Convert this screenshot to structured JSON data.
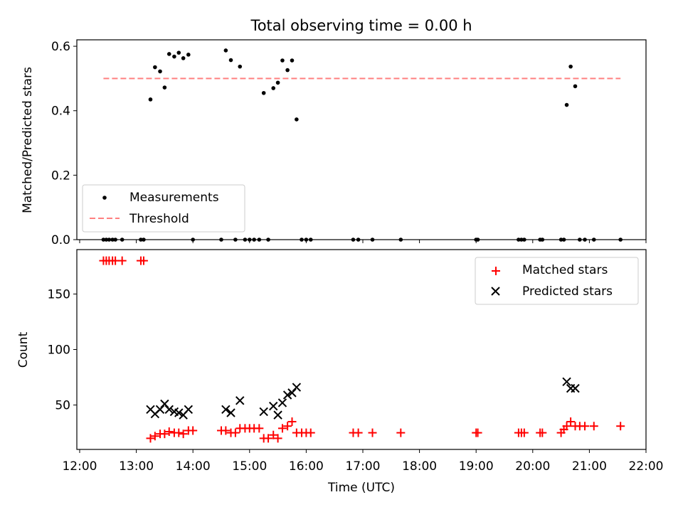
{
  "chart_data": [
    {
      "type": "scatter",
      "title": "Total observing time = 0.00 h",
      "ylabel": "Matched/Predicted stars",
      "xlim": [
        11.95,
        22.0
      ],
      "ylim": [
        0.0,
        0.62
      ],
      "y_ticks": [
        0.0,
        0.2,
        0.4,
        0.6
      ],
      "y_tick_labels": [
        "0.0",
        "0.2",
        "0.4",
        "0.6"
      ],
      "legend_position": "lower-left",
      "series": [
        {
          "name": "Measurements",
          "marker": "dot",
          "color": "#000000",
          "x": [
            12.42,
            12.47,
            12.52,
            12.58,
            12.63,
            12.75,
            13.08,
            13.13,
            13.25,
            13.33,
            13.42,
            13.5,
            13.58,
            13.67,
            13.75,
            13.83,
            13.92,
            14.0,
            14.5,
            14.58,
            14.67,
            14.75,
            14.83,
            14.92,
            15.0,
            15.08,
            15.17,
            15.25,
            15.33,
            15.42,
            15.5,
            15.58,
            15.67,
            15.75,
            15.83,
            15.92,
            16.0,
            16.08,
            16.83,
            16.92,
            17.17,
            17.67,
            19.0,
            19.03,
            19.75,
            19.8,
            19.85,
            20.13,
            20.17,
            20.5,
            20.55,
            20.6,
            20.67,
            20.75,
            20.83,
            20.92,
            21.08,
            21.55
          ],
          "y": [
            0.0,
            0.0,
            0.0,
            0.0,
            0.0,
            0.0,
            0.0,
            0.0,
            0.435,
            0.535,
            0.522,
            0.472,
            0.576,
            0.568,
            0.58,
            0.563,
            0.574,
            0.0,
            0.0,
            0.587,
            0.557,
            0.0,
            0.537,
            0.0,
            0.0,
            0.0,
            0.0,
            0.455,
            0.0,
            0.47,
            0.487,
            0.556,
            0.526,
            0.556,
            0.373,
            0.0,
            0.0,
            0.0,
            0.0,
            0.0,
            0.0,
            0.0,
            0.0,
            0.0,
            0.0,
            0.0,
            0.0,
            0.0,
            0.0,
            0.0,
            0.0,
            0.418,
            0.537,
            0.476,
            0.0,
            0.0,
            0.0,
            0.0
          ]
        },
        {
          "name": "Threshold",
          "type": "line",
          "style": "dashed",
          "color": "#ff8080",
          "x": [
            12.42,
            21.55
          ],
          "y": [
            0.5,
            0.5
          ]
        }
      ]
    },
    {
      "type": "scatter",
      "xlabel": "Time (UTC)",
      "ylabel": "Count",
      "xlim": [
        11.95,
        22.0
      ],
      "ylim": [
        10,
        190
      ],
      "x_ticks": [
        12,
        13,
        14,
        15,
        16,
        17,
        18,
        19,
        20,
        21,
        22
      ],
      "x_tick_labels": [
        "12:00",
        "13:00",
        "14:00",
        "15:00",
        "16:00",
        "17:00",
        "18:00",
        "19:00",
        "20:00",
        "21:00",
        "22:00"
      ],
      "y_ticks": [
        50,
        100,
        150
      ],
      "y_tick_labels": [
        "50",
        "100",
        "150"
      ],
      "legend_position": "upper-right",
      "series": [
        {
          "name": "Matched stars",
          "marker": "plus",
          "color": "#ff0000",
          "x": [
            12.42,
            12.47,
            12.52,
            12.58,
            12.63,
            12.75,
            13.08,
            13.13,
            13.25,
            13.33,
            13.42,
            13.5,
            13.58,
            13.67,
            13.75,
            13.83,
            13.92,
            14.0,
            14.5,
            14.58,
            14.67,
            14.75,
            14.83,
            14.92,
            15.0,
            15.08,
            15.17,
            15.25,
            15.33,
            15.42,
            15.5,
            15.58,
            15.67,
            15.75,
            15.83,
            15.92,
            16.0,
            16.08,
            16.83,
            16.92,
            17.17,
            17.67,
            19.0,
            19.03,
            19.75,
            19.8,
            19.85,
            20.13,
            20.17,
            20.5,
            20.55,
            20.6,
            20.67,
            20.75,
            20.83,
            20.92,
            21.08,
            21.55
          ],
          "y": [
            180,
            180,
            180,
            180,
            180,
            180,
            180,
            180,
            20,
            22,
            24,
            24,
            26,
            25,
            25,
            24,
            27,
            27,
            27,
            27,
            25,
            25,
            29,
            29,
            29,
            29,
            29,
            20,
            20,
            23,
            20,
            29,
            31,
            35,
            25,
            25,
            25,
            25,
            25,
            25,
            25,
            25,
            25,
            25,
            25,
            25,
            25,
            25,
            25,
            25,
            28,
            31,
            35,
            31,
            31,
            31,
            31,
            31
          ]
        },
        {
          "name": "Predicted stars",
          "marker": "x",
          "color": "#000000",
          "x": [
            13.25,
            13.33,
            13.42,
            13.5,
            13.58,
            13.67,
            13.75,
            13.83,
            13.92,
            14.58,
            14.67,
            14.83,
            15.25,
            15.42,
            15.5,
            15.58,
            15.67,
            15.75,
            15.83,
            20.6,
            20.67,
            20.75
          ],
          "y": [
            46,
            42,
            46,
            51,
            46,
            44,
            43,
            41,
            46,
            46,
            43,
            54,
            44,
            49,
            41,
            52,
            59,
            61,
            66,
            71,
            65,
            65
          ]
        }
      ]
    }
  ]
}
